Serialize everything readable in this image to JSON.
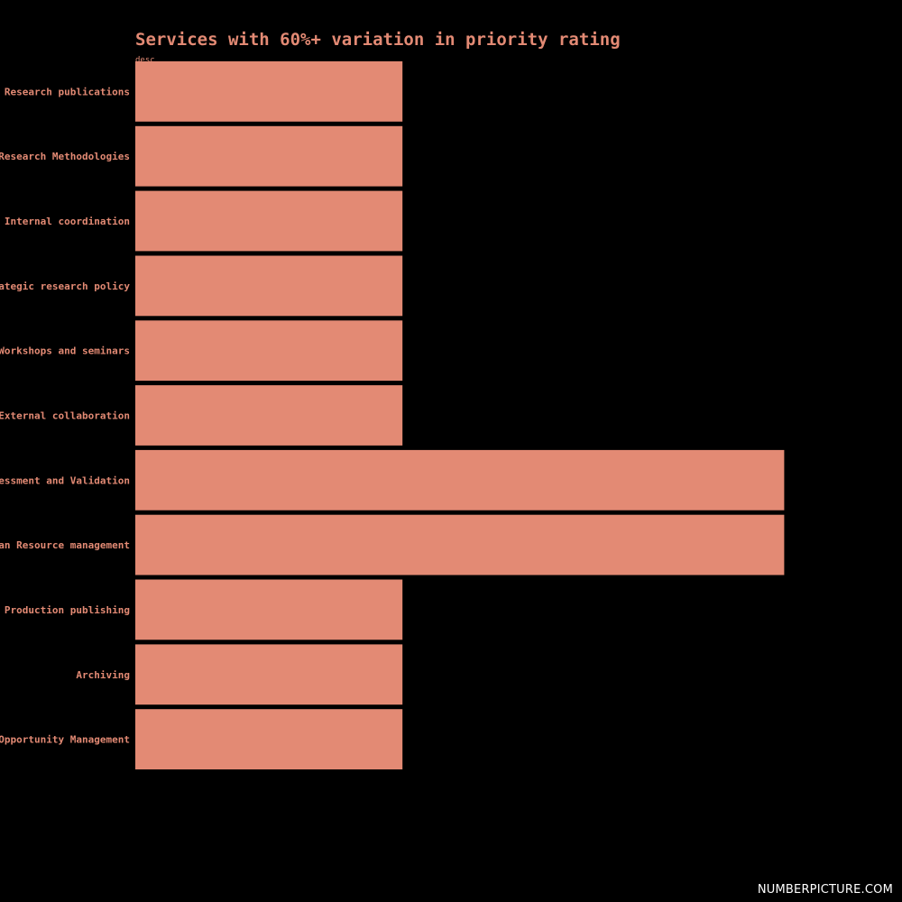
{
  "chart_data": {
    "type": "bar",
    "orientation": "horizontal",
    "title": "Services with 60%+ variation in priority rating",
    "subtitle": "desc",
    "categories": [
      "Research publications",
      "Research Methodologies",
      "Internal coordination",
      "Strategic research policy",
      "Workshops and seminars",
      "External collaboration",
      "Assessment and Validation",
      "Human Resource management",
      "Production publishing",
      "Archiving",
      "Opportunity Management"
    ],
    "values": [
      60,
      60,
      60,
      60,
      60,
      60,
      70,
      70,
      60,
      60,
      60
    ],
    "xlim": [
      53,
      72
    ],
    "bar_color": "#e38a74",
    "text_color": "#e38a74",
    "background_color": "#000000",
    "grid": false,
    "legend": "none"
  },
  "watermark": "NUMBERPICTURE.COM"
}
